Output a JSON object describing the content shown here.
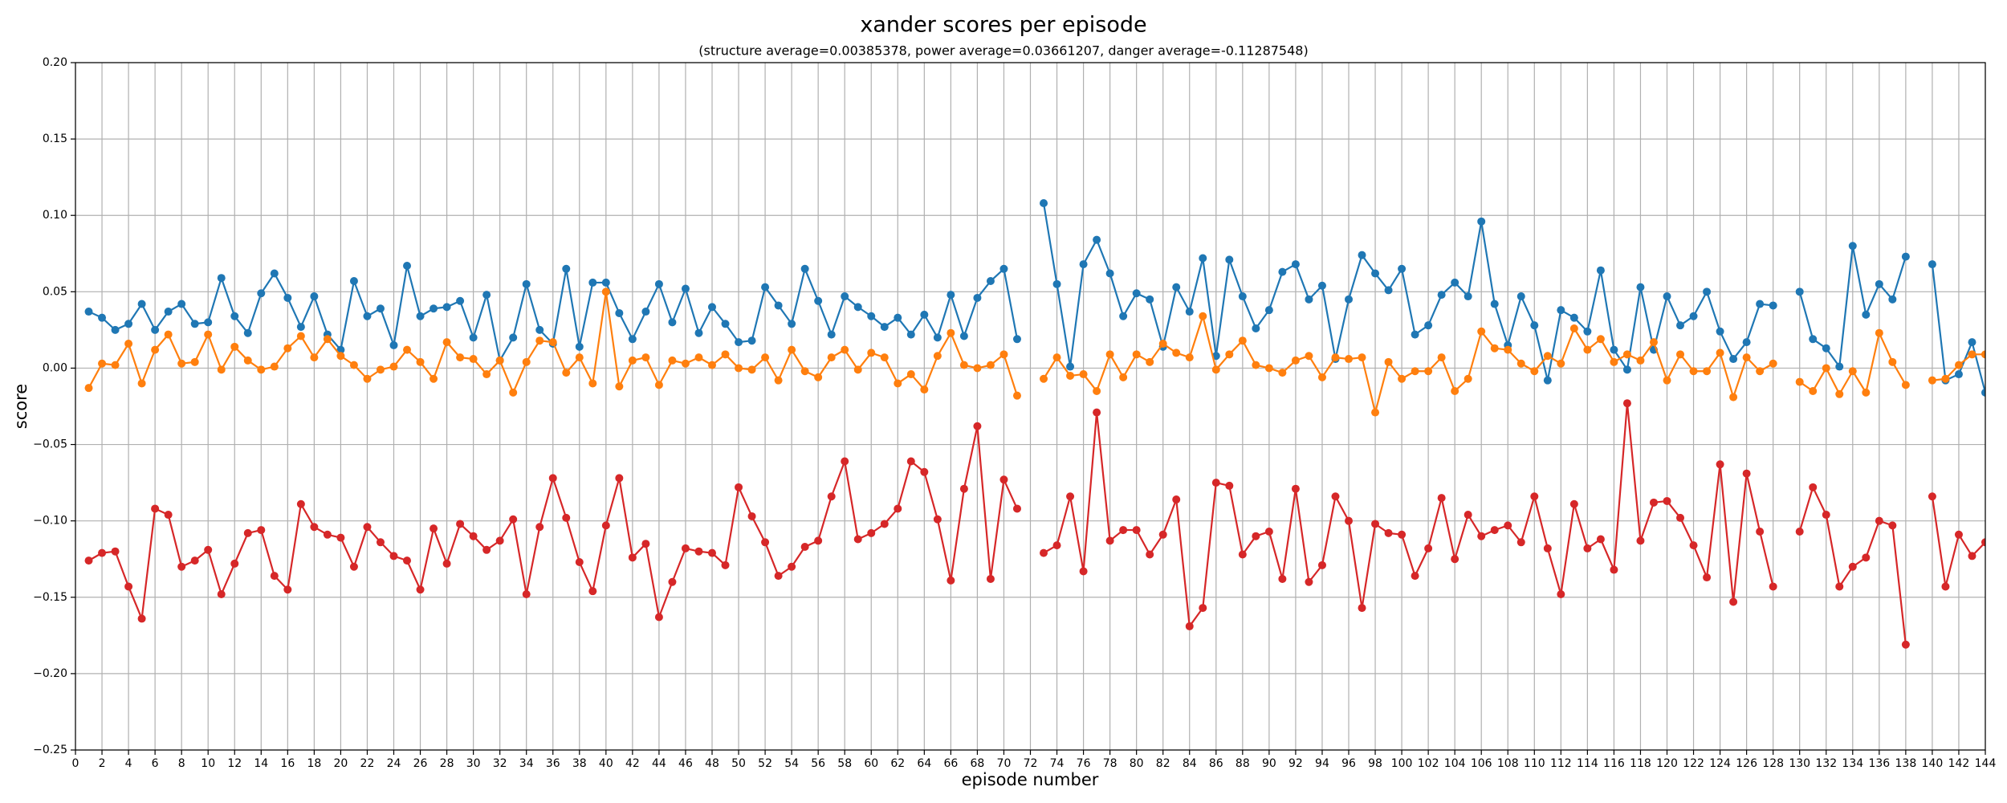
{
  "chart_data": {
    "type": "line",
    "title": "xander scores per episode",
    "subtitle": "(structure average=0.00385378, power average=0.03661207, danger average=-0.11287548)",
    "xlabel": "episode number",
    "ylabel": "score",
    "grid": true,
    "x": [
      1,
      2,
      3,
      4,
      5,
      6,
      7,
      8,
      9,
      10,
      11,
      12,
      13,
      14,
      15,
      16,
      17,
      18,
      19,
      20,
      21,
      22,
      23,
      24,
      25,
      26,
      27,
      28,
      29,
      30,
      31,
      32,
      33,
      34,
      35,
      36,
      37,
      38,
      39,
      40,
      41,
      42,
      43,
      44,
      45,
      46,
      47,
      48,
      49,
      50,
      51,
      52,
      53,
      54,
      55,
      56,
      57,
      58,
      59,
      60,
      61,
      62,
      63,
      64,
      65,
      66,
      67,
      68,
      69,
      70,
      71,
      72,
      73,
      74,
      75,
      76,
      77,
      78,
      79,
      80,
      81,
      82,
      83,
      84,
      85,
      86,
      87,
      88,
      89,
      90,
      91,
      92,
      93,
      94,
      95,
      96,
      97,
      98,
      99,
      100,
      101,
      102,
      103,
      104,
      105,
      106,
      107,
      108,
      109,
      110,
      111,
      112,
      113,
      114,
      115,
      116,
      117,
      118,
      119,
      120,
      121,
      122,
      123,
      124,
      125,
      126,
      127,
      128,
      129,
      130,
      131,
      132,
      133,
      134,
      135,
      136,
      137,
      138,
      139,
      140,
      141,
      142,
      143,
      144
    ],
    "series": [
      {
        "color": "#1f77b4",
        "values": [
          0.037,
          0.033,
          0.025,
          0.029,
          0.042,
          0.025,
          0.037,
          0.042,
          0.029,
          0.03,
          0.059,
          0.034,
          0.023,
          0.049,
          0.062,
          0.046,
          0.027,
          0.047,
          0.022,
          0.012,
          0.057,
          0.034,
          0.039,
          0.015,
          0.067,
          0.034,
          0.039,
          0.04,
          0.044,
          0.02,
          0.048,
          0.005,
          0.02,
          0.055,
          0.025,
          0.016,
          0.065,
          0.014,
          0.056,
          0.056,
          0.036,
          0.019,
          0.037,
          0.055,
          0.03,
          0.052,
          0.023,
          0.04,
          0.029,
          0.017,
          0.018,
          0.053,
          0.041,
          0.029,
          0.065,
          0.044,
          0.022,
          0.047,
          0.04,
          0.034,
          0.027,
          0.033,
          0.022,
          0.035,
          0.02,
          0.048,
          0.021,
          0.046,
          0.057,
          0.065,
          0.019,
          null,
          0.108,
          0.055,
          0.001,
          0.068,
          0.084,
          0.062,
          0.034,
          0.049,
          0.045,
          0.014,
          0.053,
          0.037,
          0.072,
          0.008,
          0.071,
          0.047,
          0.026,
          0.038,
          0.063,
          0.068,
          0.045,
          0.054,
          0.006,
          0.045,
          0.074,
          0.062,
          0.051,
          0.065,
          0.022,
          0.028,
          0.048,
          0.056,
          0.047,
          0.096,
          0.042,
          0.015,
          0.047,
          0.028,
          -0.008,
          0.038,
          0.033,
          0.024,
          0.064,
          0.012,
          -0.001,
          0.053,
          0.012,
          0.047,
          0.028,
          0.034,
          0.05,
          0.024,
          0.006,
          0.017,
          0.042,
          0.041,
          null,
          0.05,
          0.019,
          0.013,
          0.001,
          0.08,
          0.035,
          0.055,
          0.045,
          0.073,
          null,
          0.068,
          -0.008,
          -0.004,
          0.017,
          -0.016
        ]
      },
      {
        "color": "#ff7f0e",
        "values": [
          -0.013,
          0.003,
          0.002,
          0.016,
          -0.01,
          0.012,
          0.022,
          0.003,
          0.004,
          0.022,
          -0.001,
          0.014,
          0.005,
          -0.001,
          0.001,
          0.013,
          0.021,
          0.007,
          0.019,
          0.008,
          0.002,
          -0.007,
          -0.001,
          0.001,
          0.012,
          0.004,
          -0.007,
          0.017,
          0.007,
          0.006,
          -0.004,
          0.005,
          -0.016,
          0.004,
          0.018,
          0.017,
          -0.003,
          0.007,
          -0.01,
          0.05,
          -0.012,
          0.005,
          0.007,
          -0.011,
          0.005,
          0.003,
          0.007,
          0.002,
          0.009,
          0.0,
          -0.001,
          0.007,
          -0.008,
          0.012,
          -0.002,
          -0.006,
          0.007,
          0.012,
          -0.001,
          0.01,
          0.007,
          -0.01,
          -0.004,
          -0.014,
          0.008,
          0.023,
          0.002,
          0.0,
          0.002,
          0.009,
          -0.018,
          null,
          -0.007,
          0.007,
          -0.005,
          -0.004,
          -0.015,
          0.009,
          -0.006,
          0.009,
          0.004,
          0.016,
          0.01,
          0.007,
          0.034,
          -0.001,
          0.009,
          0.018,
          0.002,
          0.0,
          -0.003,
          0.005,
          0.008,
          -0.006,
          0.007,
          0.006,
          0.007,
          -0.029,
          0.004,
          -0.007,
          -0.002,
          -0.002,
          0.007,
          -0.015,
          -0.007,
          0.024,
          0.013,
          0.012,
          0.003,
          -0.002,
          0.008,
          0.003,
          0.026,
          0.012,
          0.019,
          0.004,
          0.009,
          0.005,
          0.017,
          -0.008,
          0.009,
          -0.002,
          -0.002,
          0.01,
          -0.019,
          0.007,
          -0.002,
          0.003,
          null,
          -0.009,
          -0.015,
          0.0,
          -0.017,
          -0.002,
          -0.016,
          0.023,
          0.004,
          -0.011,
          null,
          -0.008,
          -0.007,
          0.002,
          0.009,
          0.009
        ]
      },
      {
        "color": "#d62728",
        "values": [
          -0.126,
          -0.121,
          -0.12,
          -0.143,
          -0.164,
          -0.092,
          -0.096,
          -0.13,
          -0.126,
          -0.119,
          -0.148,
          -0.128,
          -0.108,
          -0.106,
          -0.136,
          -0.145,
          -0.089,
          -0.104,
          -0.109,
          -0.111,
          -0.13,
          -0.104,
          -0.114,
          -0.123,
          -0.126,
          -0.145,
          -0.105,
          -0.128,
          -0.102,
          -0.11,
          -0.119,
          -0.113,
          -0.099,
          -0.148,
          -0.104,
          -0.072,
          -0.098,
          -0.127,
          -0.146,
          -0.103,
          -0.072,
          -0.124,
          -0.115,
          -0.163,
          -0.14,
          -0.118,
          -0.12,
          -0.121,
          -0.129,
          -0.078,
          -0.097,
          -0.114,
          -0.136,
          -0.13,
          -0.117,
          -0.113,
          -0.084,
          -0.061,
          -0.112,
          -0.108,
          -0.102,
          -0.092,
          -0.061,
          -0.068,
          -0.099,
          -0.139,
          -0.079,
          -0.038,
          -0.138,
          -0.073,
          -0.092,
          null,
          -0.121,
          -0.116,
          -0.084,
          -0.133,
          -0.029,
          -0.113,
          -0.106,
          -0.106,
          -0.122,
          -0.109,
          -0.086,
          -0.169,
          -0.157,
          -0.075,
          -0.077,
          -0.122,
          -0.11,
          -0.107,
          -0.138,
          -0.079,
          -0.14,
          -0.129,
          -0.084,
          -0.1,
          -0.157,
          -0.102,
          -0.108,
          -0.109,
          -0.136,
          -0.118,
          -0.085,
          -0.125,
          -0.096,
          -0.11,
          -0.106,
          -0.103,
          -0.114,
          -0.084,
          -0.118,
          -0.148,
          -0.089,
          -0.118,
          -0.112,
          -0.132,
          -0.023,
          -0.113,
          -0.088,
          -0.087,
          -0.098,
          -0.116,
          -0.137,
          -0.063,
          -0.153,
          -0.069,
          -0.107,
          -0.143,
          null,
          -0.107,
          -0.078,
          -0.096,
          -0.143,
          -0.13,
          -0.124,
          -0.1,
          -0.103,
          -0.181,
          null,
          -0.084,
          -0.143,
          -0.109,
          -0.123,
          -0.114
        ]
      }
    ],
    "xlim": [
      0,
      144
    ],
    "xticks": [
      0,
      2,
      4,
      6,
      8,
      10,
      12,
      14,
      16,
      18,
      20,
      22,
      24,
      26,
      28,
      30,
      32,
      34,
      36,
      38,
      40,
      42,
      44,
      46,
      48,
      50,
      52,
      54,
      56,
      58,
      60,
      62,
      64,
      66,
      68,
      70,
      72,
      74,
      76,
      78,
      80,
      82,
      84,
      86,
      88,
      90,
      92,
      94,
      96,
      98,
      100,
      102,
      104,
      106,
      108,
      110,
      112,
      114,
      116,
      118,
      120,
      122,
      124,
      126,
      128,
      130,
      132,
      134,
      136,
      138,
      140,
      142,
      144
    ],
    "ylim": [
      -0.25,
      0.2
    ],
    "yticks": [
      {
        "value": -0.25,
        "label": "−0.25"
      },
      {
        "value": -0.2,
        "label": "−0.20"
      },
      {
        "value": -0.15,
        "label": "−0.15"
      },
      {
        "value": -0.1,
        "label": "−0.10"
      },
      {
        "value": -0.05,
        "label": "−0.05"
      },
      {
        "value": 0,
        "label": "0.00"
      },
      {
        "value": 0.05,
        "label": "0.05"
      },
      {
        "value": 0.1,
        "label": "0.10"
      },
      {
        "value": 0.15,
        "label": "0.15"
      },
      {
        "value": 0.2,
        "label": "0.20"
      }
    ]
  }
}
